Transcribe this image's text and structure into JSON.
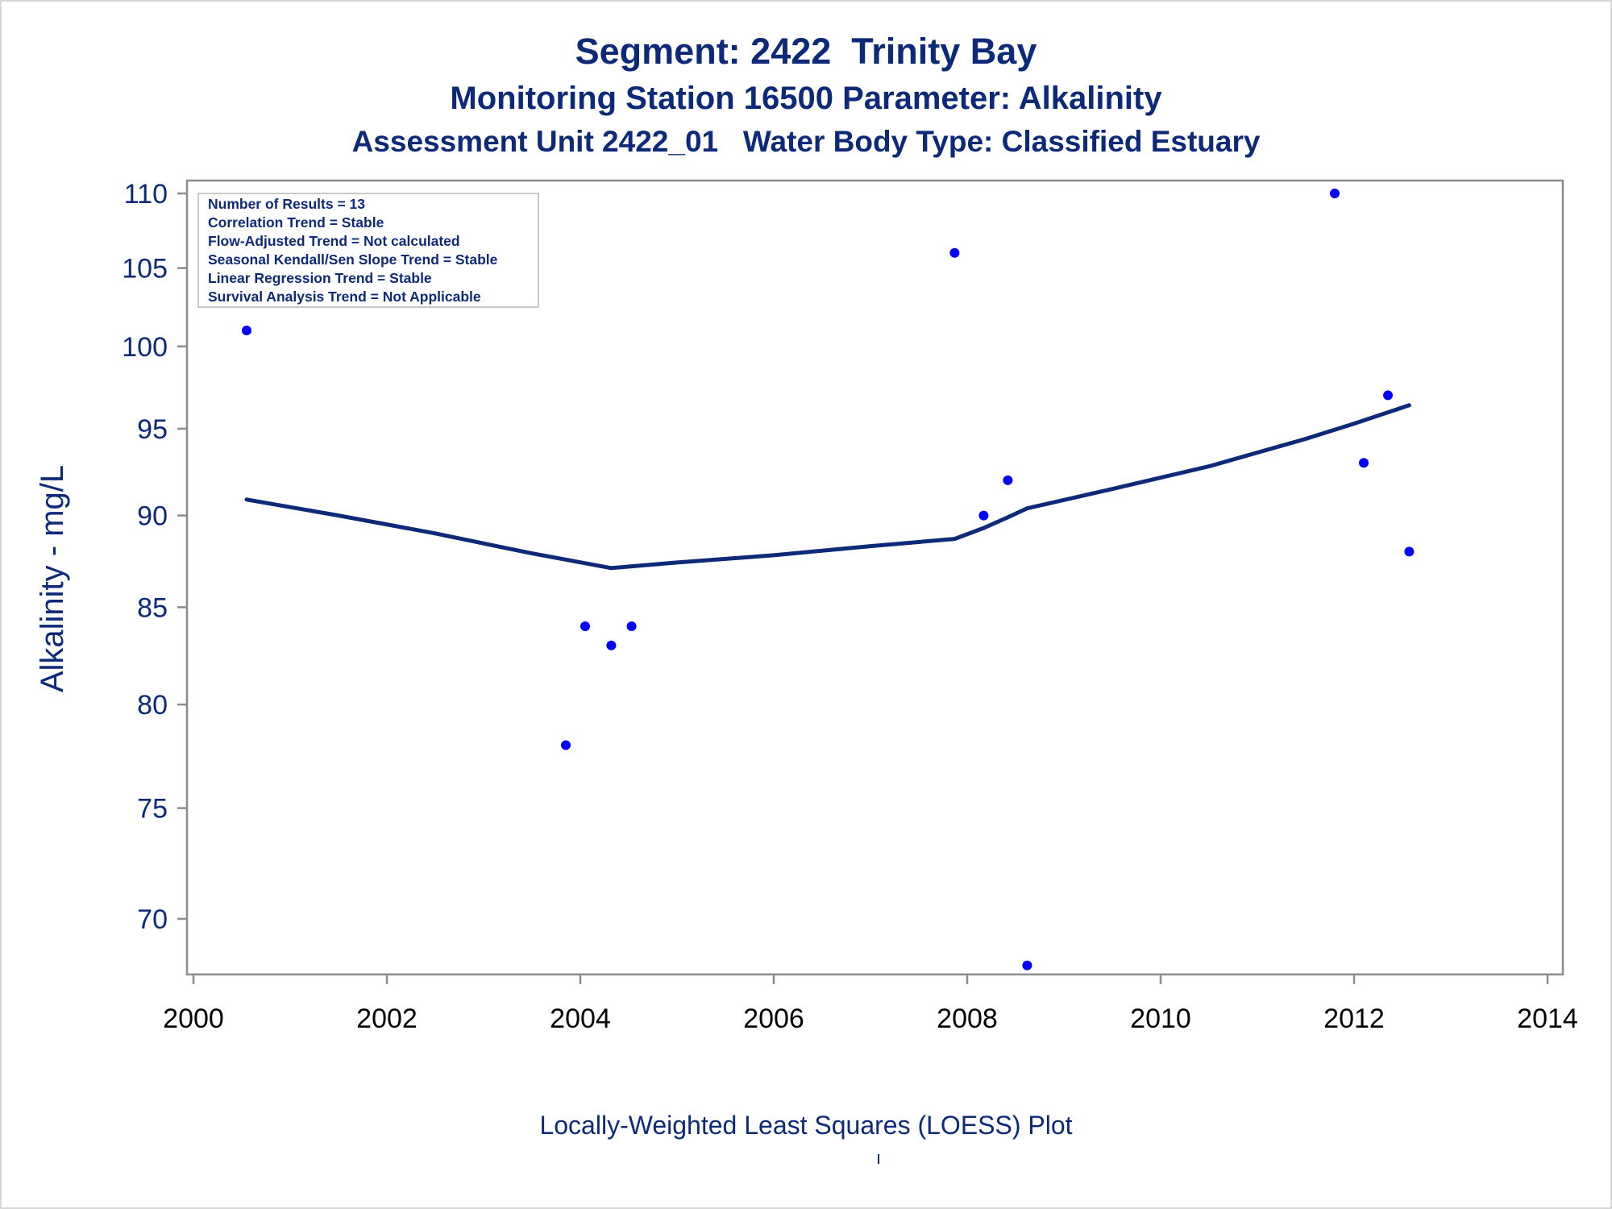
{
  "header": {
    "title_line1": "Segment: 2422  Trinity Bay",
    "title_line2": "Monitoring Station 16500 Parameter: Alkalinity",
    "title_line3": "Assessment Unit 2422_01   Water Body Type: Classified Estuary"
  },
  "stats_box": {
    "lines": [
      "Number of Results = 13",
      "Correlation Trend = Stable",
      "Flow-Adjusted Trend = Not calculated",
      "Seasonal Kendall/Sen Slope Trend = Stable",
      "Linear Regression Trend = Stable",
      "Survival Analysis Trend = Not Applicable"
    ]
  },
  "footer": {
    "caption": "Locally-Weighted Least Squares (LOESS) Plot"
  },
  "colors": {
    "text": "#0c2a78",
    "points": "#0000ff",
    "loess_line": "#0c2a78",
    "axis": "#8c8c8c"
  },
  "chart_data": {
    "type": "scatter",
    "ylabel": "Alkalinity - mg/L",
    "xlabel": "",
    "x_ticks": [
      "2000",
      "2002",
      "2004",
      "2006",
      "2008",
      "2010",
      "2012",
      "2014"
    ],
    "y_ticks": [
      "70",
      "75",
      "80",
      "85",
      "90",
      "95",
      "100",
      "105",
      "110"
    ],
    "y_scale": "log",
    "xlim": [
      2000,
      2014
    ],
    "ylim": [
      68,
      110
    ],
    "grid": false,
    "points": [
      {
        "x": 2000.55,
        "y": 101
      },
      {
        "x": 2003.85,
        "y": 78
      },
      {
        "x": 2004.05,
        "y": 84
      },
      {
        "x": 2004.32,
        "y": 83
      },
      {
        "x": 2004.53,
        "y": 84
      },
      {
        "x": 2007.87,
        "y": 106
      },
      {
        "x": 2008.17,
        "y": 90
      },
      {
        "x": 2008.42,
        "y": 92
      },
      {
        "x": 2008.62,
        "y": 68
      },
      {
        "x": 2011.8,
        "y": 110
      },
      {
        "x": 2012.1,
        "y": 93
      },
      {
        "x": 2012.35,
        "y": 97
      },
      {
        "x": 2012.57,
        "y": 88
      }
    ],
    "loess_line": [
      {
        "x": 2000.55,
        "y": 90.9
      },
      {
        "x": 2001.5,
        "y": 90.0
      },
      {
        "x": 2002.5,
        "y": 89.0
      },
      {
        "x": 2003.5,
        "y": 87.9
      },
      {
        "x": 2004.32,
        "y": 87.1
      },
      {
        "x": 2005.0,
        "y": 87.4
      },
      {
        "x": 2006.0,
        "y": 87.8
      },
      {
        "x": 2007.0,
        "y": 88.3
      },
      {
        "x": 2007.87,
        "y": 88.7
      },
      {
        "x": 2008.17,
        "y": 89.3
      },
      {
        "x": 2008.42,
        "y": 89.9
      },
      {
        "x": 2008.62,
        "y": 90.4
      },
      {
        "x": 2009.5,
        "y": 91.5
      },
      {
        "x": 2010.5,
        "y": 92.8
      },
      {
        "x": 2011.5,
        "y": 94.4
      },
      {
        "x": 2012.0,
        "y": 95.3
      },
      {
        "x": 2012.57,
        "y": 96.4
      }
    ]
  }
}
